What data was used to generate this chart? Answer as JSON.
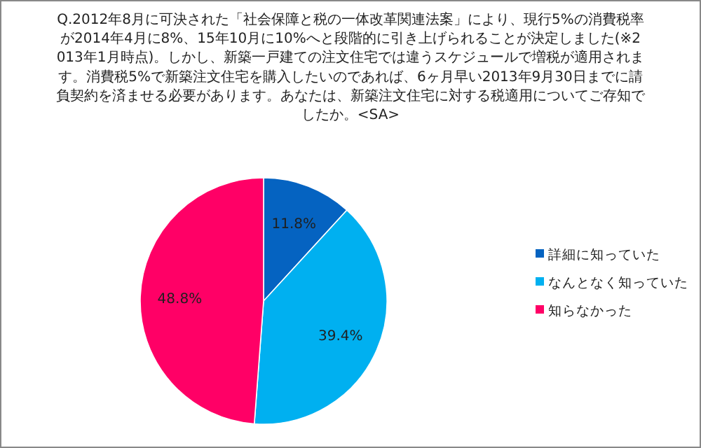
{
  "chart_data": {
    "type": "pie",
    "title": "Q.2012年8月に可決された「社会保障と税の一体改革関連法案」により、現行5%の消費税率が2014年4月に8%、15年10月に10%へと段階的に引き上げられることが決定しました(※2013年1月時点)。しかし、新築一戸建ての注文住宅では違うスケジュールで増税が適用されます。消費税5%で新築注文住宅を購入したいのであれば、6ヶ月早い2013年9月30日までに請負契約を済ませる必要があります。あなたは、新築注文住宅に対する税適用についてご存知でしたか。<SA>",
    "categories": [
      "詳細に知っていた",
      "なんとなく知っていた",
      "知らなかった"
    ],
    "values": [
      11.8,
      39.4,
      48.8
    ],
    "value_labels": [
      "11.8%",
      "39.4%",
      "48.8%"
    ],
    "colors": [
      "#0563c1",
      "#00b0f0",
      "#ff0066"
    ],
    "legend": "right"
  }
}
